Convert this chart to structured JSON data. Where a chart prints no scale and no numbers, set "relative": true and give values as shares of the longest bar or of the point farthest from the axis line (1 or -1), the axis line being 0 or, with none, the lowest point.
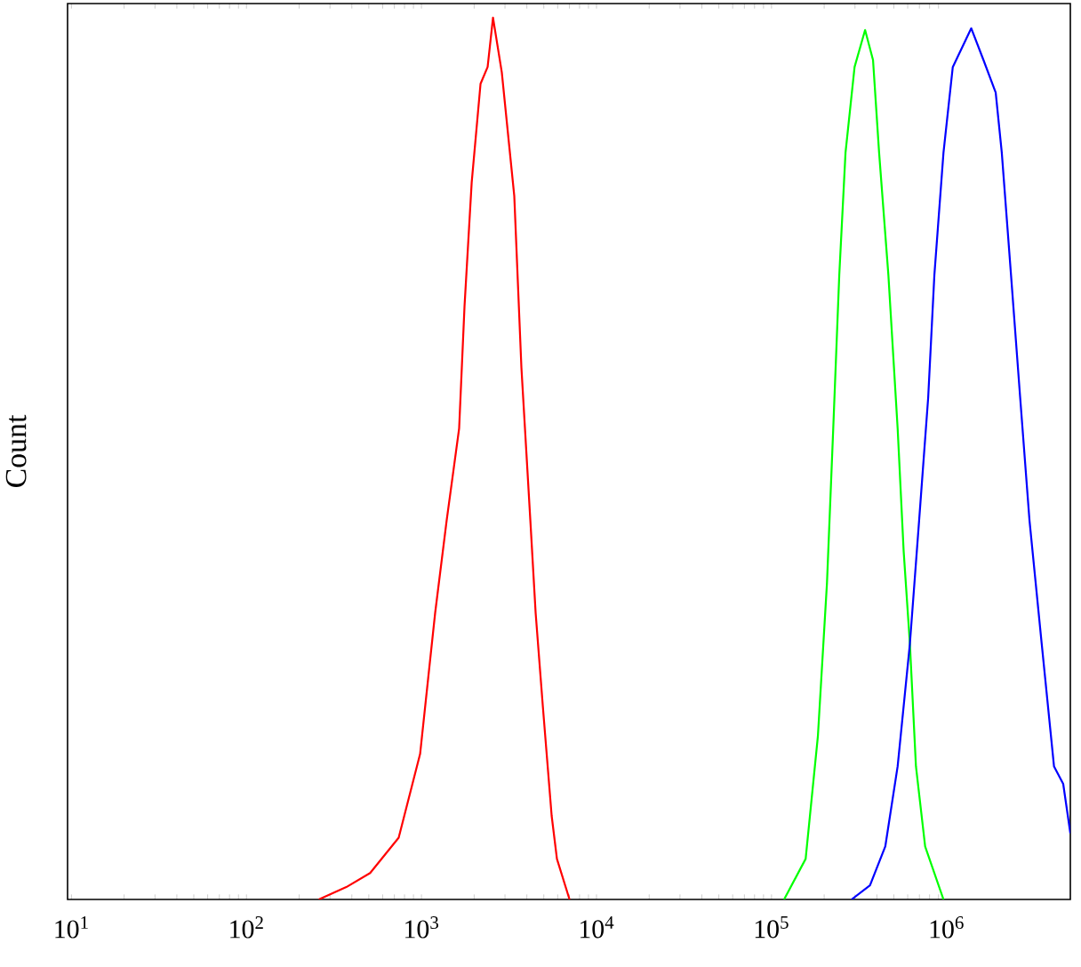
{
  "chart_data": {
    "type": "line",
    "ylabel": "Count",
    "relative": true,
    "log": "x",
    "xlim": [
      9.5,
      5100000
    ],
    "xticks": [
      {
        "value": 10,
        "label": "10$^{1}$"
      },
      {
        "value": 100,
        "label": "10$^{2}$"
      },
      {
        "value": 1000,
        "label": "10$^{3}$"
      },
      {
        "value": 10000,
        "label": "10$^{4}$"
      },
      {
        "value": 100000,
        "label": "10$^{5}$"
      },
      {
        "value": 1000000,
        "label": "10$^{6}$"
      }
    ],
    "series": [
      {
        "color": "#ff0000",
        "x": [
          259,
          372,
          509,
          741,
          982,
          1197,
          1393,
          1641,
          1762,
          1936,
          2175,
          2387,
          2563,
          2877,
          3390,
          3724,
          4188,
          4490,
          4932,
          5543,
          5943,
          7015
        ],
        "values": [
          0,
          0.014,
          0.03,
          0.07,
          0.165,
          0.325,
          0.43,
          0.534,
          0.673,
          0.813,
          0.925,
          0.944,
          1,
          0.938,
          0.798,
          0.603,
          0.43,
          0.325,
          0.22,
          0.095,
          0.046,
          0
        ]
      },
      {
        "color": "#00ff00",
        "x": [
          118000,
          156700,
          184100,
          207500,
          225300,
          243900,
          264800,
          298300,
          342600,
          380300,
          411900,
          465500,
          525800,
          569000,
          617700,
          668900,
          755000,
          961000
        ],
        "values": [
          0,
          0.046,
          0.185,
          0.359,
          0.534,
          0.708,
          0.847,
          0.944,
          0.986,
          0.952,
          0.847,
          0.708,
          0.534,
          0.395,
          0.29,
          0.151,
          0.06,
          0
        ]
      },
      {
        "color": "#0000ff",
        "x": [
          286700,
          365400,
          446700,
          525800,
          617700,
          697600,
          785800,
          852300,
          961000,
          1086000,
          1385000,
          1626000,
          1910000,
          2069000,
          2337000,
          2636000,
          2979000,
          3499000,
          4113000,
          4643000,
          5100000
        ],
        "values": [
          0,
          0.016,
          0.06,
          0.151,
          0.29,
          0.43,
          0.569,
          0.708,
          0.847,
          0.944,
          0.988,
          0.952,
          0.915,
          0.847,
          0.708,
          0.569,
          0.43,
          0.29,
          0.151,
          0.131,
          0.075
        ]
      }
    ]
  }
}
